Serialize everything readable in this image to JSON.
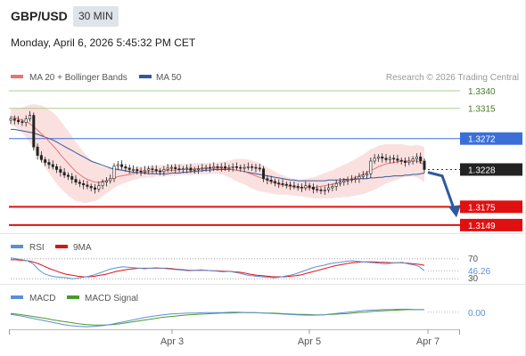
{
  "header": {
    "symbol": "GBP/USD",
    "timeframe": "30 MIN",
    "datetime": "Monday, April 6, 2026 5:45:32 PM CET",
    "credit": "Research © 2026 Trading Central"
  },
  "colors": {
    "ma20": "#e8736f",
    "ma50": "#2e5a9c",
    "band_fill": "#fbe0e0",
    "resistance": "#a8d08d",
    "pivot": "#3a6fd8",
    "support": "#e01010",
    "arrow": "#2e5a9c",
    "up_candle": "#ffffff",
    "down_candle": "#222222",
    "rsi": "#5b8fd8",
    "rsi_ma": "#e01010",
    "macd": "#5b8fd8",
    "macd_signal": "#4a9a2a"
  },
  "legend": {
    "ma20_label": "MA 20 + Bollinger Bands",
    "ma50_label": "MA 50",
    "rsi_label": "RSI",
    "rsi_ma_label": "9MA",
    "macd_label": "MACD",
    "macd_signal_label": "MACD Signal"
  },
  "chart_data": [
    {
      "type": "candlestick",
      "ylim": [
        1.314,
        1.3345
      ],
      "x_ticks": [
        "Apr 3",
        "Apr 5",
        "Apr 7"
      ],
      "close": [
        1.33,
        1.3298,
        1.3296,
        1.3295,
        1.33,
        1.3305,
        1.326,
        1.3248,
        1.3242,
        1.3238,
        1.3235,
        1.3232,
        1.3228,
        1.3224,
        1.322,
        1.3218,
        1.3214,
        1.321,
        1.3208,
        1.3206,
        1.3204,
        1.3202,
        1.32,
        1.3205,
        1.321,
        1.3212,
        1.3215,
        1.3233,
        1.3235,
        1.3232,
        1.323,
        1.3228,
        1.3228,
        1.3226,
        1.3225,
        1.3227,
        1.3229,
        1.3228,
        1.3226,
        1.3225,
        1.3228,
        1.323,
        1.3231,
        1.3229,
        1.3228,
        1.3229,
        1.323,
        1.3227,
        1.3228,
        1.3229,
        1.323,
        1.3231,
        1.323,
        1.3232,
        1.3231,
        1.3232,
        1.323,
        1.3231,
        1.3232,
        1.3231,
        1.323,
        1.3231,
        1.3232,
        1.3231,
        1.323,
        1.3229,
        1.3215,
        1.3213,
        1.3211,
        1.3209,
        1.3208,
        1.3207,
        1.3206,
        1.3205,
        1.3204,
        1.3203,
        1.3202,
        1.3205,
        1.3203,
        1.32,
        1.3199,
        1.3198,
        1.3199,
        1.3202,
        1.3204,
        1.3208,
        1.321,
        1.3212,
        1.3213,
        1.3214,
        1.3215,
        1.3218,
        1.322,
        1.3222,
        1.324,
        1.3244,
        1.3246,
        1.3244,
        1.3242,
        1.3244,
        1.3243,
        1.3241,
        1.324,
        1.3238,
        1.324,
        1.3243,
        1.3246,
        1.324,
        1.3228
      ],
      "current_price": 1.3228,
      "ma20": [
        1.3303,
        1.3302,
        1.33,
        1.3298,
        1.3296,
        1.3293,
        1.3289,
        1.3284,
        1.3279,
        1.3274,
        1.3268,
        1.3262,
        1.3256,
        1.3249,
        1.3243,
        1.3237,
        1.3231,
        1.3225,
        1.3221,
        1.3217,
        1.3214,
        1.3212,
        1.321,
        1.321,
        1.3211,
        1.3212,
        1.3214,
        1.3216,
        1.3218,
        1.3219,
        1.322,
        1.3221,
        1.3222,
        1.3223,
        1.3224,
        1.3224,
        1.3225,
        1.3225,
        1.3226,
        1.3226,
        1.3226,
        1.3227,
        1.3227,
        1.3227,
        1.3228,
        1.3228,
        1.3228,
        1.3228,
        1.3229,
        1.3229,
        1.3229,
        1.3229,
        1.323,
        1.323,
        1.323,
        1.323,
        1.3229,
        1.3229,
        1.3228,
        1.3227,
        1.3226,
        1.3225,
        1.3223,
        1.3221,
        1.3219,
        1.3217,
        1.3215,
        1.3213,
        1.3211,
        1.3209,
        1.3207,
        1.3206,
        1.3205,
        1.3204,
        1.3203,
        1.3202,
        1.3202,
        1.3202,
        1.3202,
        1.3202,
        1.3203,
        1.3204,
        1.3205,
        1.3206,
        1.3207,
        1.3209,
        1.321,
        1.3212,
        1.3213,
        1.3215,
        1.3217,
        1.3219,
        1.3221,
        1.3224,
        1.3227,
        1.3229,
        1.3232,
        1.3234,
        1.3236,
        1.3237,
        1.3238,
        1.3239,
        1.324,
        1.324,
        1.324,
        1.324,
        1.324,
        1.3238,
        1.3235
      ],
      "bb_width": [
        0.0012,
        0.0013,
        0.0015,
        0.0018,
        0.0022,
        0.0027,
        0.0032,
        0.0036,
        0.004,
        0.0043,
        0.0045,
        0.0047,
        0.0048,
        0.0048,
        0.0047,
        0.0046,
        0.0044,
        0.0042,
        0.0039,
        0.0036,
        0.0033,
        0.003,
        0.0027,
        0.0024,
        0.0021,
        0.0018,
        0.0016,
        0.0014,
        0.0013,
        0.0012,
        0.0011,
        0.001,
        0.0009,
        0.0009,
        0.0008,
        0.0008,
        0.0008,
        0.0008,
        0.0008,
        0.0008,
        0.0008,
        0.0008,
        0.0008,
        0.0008,
        0.0008,
        0.0008,
        0.0008,
        0.0008,
        0.0008,
        0.0008,
        0.0008,
        0.0008,
        0.0008,
        0.0008,
        0.0008,
        0.0009,
        0.001,
        0.0012,
        0.0014,
        0.0016,
        0.0017,
        0.0018,
        0.0019,
        0.002,
        0.002,
        0.002,
        0.0019,
        0.0018,
        0.0017,
        0.0016,
        0.0015,
        0.0014,
        0.0013,
        0.0012,
        0.0012,
        0.0012,
        0.0012,
        0.0013,
        0.0014,
        0.0015,
        0.0016,
        0.0017,
        0.0018,
        0.0019,
        0.002,
        0.0021,
        0.0022,
        0.0023,
        0.0024,
        0.0025,
        0.0026,
        0.0027,
        0.0028,
        0.0029,
        0.003,
        0.003,
        0.003,
        0.0029,
        0.0028,
        0.0027,
        0.0026,
        0.0025,
        0.0024,
        0.0023,
        0.0022,
        0.0022,
        0.0023,
        0.0024,
        0.0025
      ],
      "ma50": [
        1.3285,
        1.3285,
        1.3284,
        1.3283,
        1.3282,
        1.3281,
        1.328,
        1.3278,
        1.3276,
        1.3274,
        1.3272,
        1.327,
        1.3267,
        1.3264,
        1.3261,
        1.3258,
        1.3255,
        1.3252,
        1.3249,
        1.3246,
        1.3243,
        1.324,
        1.3238,
        1.3236,
        1.3234,
        1.3232,
        1.323,
        1.3229,
        1.3228,
        1.3227,
        1.3226,
        1.3225,
        1.3224,
        1.3224,
        1.3223,
        1.3223,
        1.3222,
        1.3222,
        1.3222,
        1.3222,
        1.3222,
        1.3222,
        1.3223,
        1.3223,
        1.3223,
        1.3224,
        1.3224,
        1.3225,
        1.3225,
        1.3226,
        1.3226,
        1.3227,
        1.3227,
        1.3228,
        1.3228,
        1.3228,
        1.3228,
        1.3228,
        1.3228,
        1.3227,
        1.3226,
        1.3225,
        1.3224,
        1.3223,
        1.3222,
        1.3221,
        1.322,
        1.3219,
        1.3218,
        1.3217,
        1.3216,
        1.3215,
        1.3214,
        1.3213,
        1.3213,
        1.3212,
        1.3212,
        1.3212,
        1.3212,
        1.3212,
        1.3212,
        1.3212,
        1.3212,
        1.3213,
        1.3213,
        1.3213,
        1.3213,
        1.3214,
        1.3214,
        1.3214,
        1.3214,
        1.3215,
        1.3215,
        1.3215,
        1.3216,
        1.3216,
        1.3217,
        1.3217,
        1.3218,
        1.3218,
        1.3219,
        1.3219,
        1.3219,
        1.322,
        1.322,
        1.3221,
        1.3221,
        1.3222,
        1.3223
      ],
      "levels": [
        {
          "label": "1.3340",
          "value": 1.334,
          "role": "resistance"
        },
        {
          "label": "1.3315",
          "value": 1.3315,
          "role": "resistance"
        },
        {
          "label": "1.3272",
          "value": 1.3272,
          "role": "pivot"
        },
        {
          "label": "1.3228",
          "value": 1.3228,
          "role": "last"
        },
        {
          "label": "1.3175",
          "value": 1.3175,
          "role": "support"
        },
        {
          "label": "1.3149",
          "value": 1.3149,
          "role": "support"
        }
      ],
      "forecast_arrow": {
        "from": 1.3224,
        "to": 1.316,
        "direction": "down"
      }
    },
    {
      "type": "line",
      "panel": "RSI",
      "ylim": [
        25,
        75
      ],
      "reference_labels": [
        "70",
        "30"
      ],
      "current_label": "46.26",
      "rsi": [
        72,
        70,
        68,
        66,
        60,
        48,
        40,
        36,
        34,
        33,
        32,
        30,
        31,
        33,
        35,
        38,
        42,
        46,
        50,
        52,
        54,
        53,
        52,
        51,
        50,
        51,
        52,
        51,
        50,
        49,
        48,
        47,
        46,
        47,
        48,
        47,
        46,
        45,
        44,
        45,
        43,
        41,
        38,
        36,
        35,
        34,
        33,
        32,
        33,
        35,
        37,
        40,
        44,
        48,
        52,
        55,
        57,
        60,
        62,
        63,
        65,
        66,
        65,
        64,
        63,
        62,
        61,
        60,
        61,
        62,
        63,
        60,
        58,
        55,
        46
      ],
      "rsi_ma": [
        68,
        68,
        67,
        66,
        64,
        60,
        55,
        50,
        46,
        42,
        39,
        37,
        35,
        34,
        34,
        35,
        37,
        39,
        42,
        45,
        47,
        49,
        50,
        51,
        51,
        51,
        51,
        51,
        51,
        50,
        49,
        48,
        47,
        47,
        47,
        47,
        46,
        46,
        45,
        45,
        44,
        43,
        41,
        39,
        37,
        36,
        35,
        34,
        34,
        34,
        35,
        36,
        38,
        41,
        44,
        47,
        50,
        53,
        56,
        58,
        60,
        62,
        63,
        64,
        64,
        64,
        63,
        63,
        62,
        62,
        62,
        61,
        60,
        59,
        57
      ]
    },
    {
      "type": "line",
      "panel": "MACD",
      "ylim": [
        -0.004,
        0.0012
      ],
      "current_label": "0.00",
      "macd": [
        -0.0005,
        -0.0008,
        -0.0012,
        -0.0016,
        -0.002,
        -0.0024,
        -0.0028,
        -0.0031,
        -0.0033,
        -0.0034,
        -0.0033,
        -0.0031,
        -0.0028,
        -0.0024,
        -0.002,
        -0.0016,
        -0.0012,
        -0.0009,
        -0.0006,
        -0.0004,
        -0.0003,
        -0.0002,
        -0.0002,
        -0.0001,
        -0.0001,
        -0.0001,
        0.0,
        0.0,
        -0.0001,
        -0.0001,
        -0.0002,
        -0.0003,
        -0.0004,
        -0.0005,
        -0.0006,
        -0.0007,
        -0.0007,
        -0.0006,
        -0.0004,
        -0.0002,
        0.0,
        0.0002,
        0.0004,
        0.0005,
        0.0006,
        0.0006,
        0.0007,
        0.0007,
        0.0006,
        0.0006
      ],
      "signal": [
        -0.0003,
        -0.0005,
        -0.0008,
        -0.0011,
        -0.0014,
        -0.0018,
        -0.0021,
        -0.0024,
        -0.0027,
        -0.0029,
        -0.003,
        -0.003,
        -0.0029,
        -0.0027,
        -0.0024,
        -0.0021,
        -0.0018,
        -0.0015,
        -0.0012,
        -0.001,
        -0.0008,
        -0.0006,
        -0.0005,
        -0.0004,
        -0.0003,
        -0.0002,
        -0.0002,
        -0.0001,
        -0.0001,
        -0.0001,
        -0.0002,
        -0.0002,
        -0.0003,
        -0.0004,
        -0.0005,
        -0.0005,
        -0.0006,
        -0.0006,
        -0.0005,
        -0.0004,
        -0.0003,
        -0.0001,
        0.0,
        0.0002,
        0.0003,
        0.0004,
        0.0005,
        0.0006,
        0.0006,
        0.0006
      ]
    }
  ]
}
